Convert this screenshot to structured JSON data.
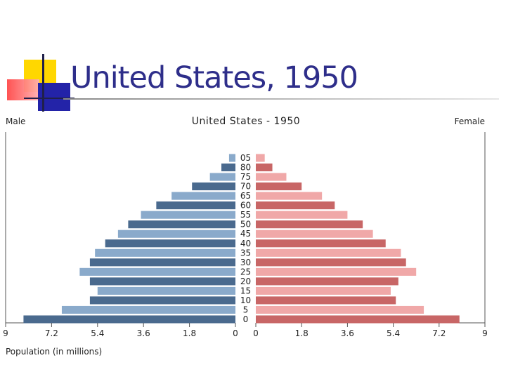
{
  "slide": {
    "title": "United States, 1950"
  },
  "chart_data": {
    "type": "bar",
    "title": "United States - 1950",
    "left_label": "Male",
    "right_label": "Female",
    "xlabel": "Population (in millions)",
    "xlim": [
      0,
      9
    ],
    "left_ticks": [
      "9",
      "7.2",
      "5.4",
      "3.6",
      "1.8",
      "0"
    ],
    "right_ticks": [
      "0",
      "1.8",
      "3.6",
      "5.4",
      "7.2",
      "9"
    ],
    "categories": [
      "0",
      "5",
      "10",
      "15",
      "20",
      "25",
      "30",
      "35",
      "40",
      "45",
      "50",
      "55",
      "60",
      "65",
      "70",
      "75",
      "80",
      "05"
    ],
    "series": [
      {
        "name": "Male",
        "values": [
          8.3,
          6.8,
          5.7,
          5.4,
          5.7,
          6.1,
          5.7,
          5.5,
          5.1,
          4.6,
          4.2,
          3.7,
          3.1,
          2.5,
          1.7,
          1.0,
          0.55,
          0.25
        ]
      },
      {
        "name": "Female",
        "values": [
          8.0,
          6.6,
          5.5,
          5.3,
          5.6,
          6.3,
          5.9,
          5.7,
          5.1,
          4.6,
          4.2,
          3.6,
          3.1,
          2.6,
          1.8,
          1.2,
          0.65,
          0.35
        ]
      }
    ],
    "colors": {
      "male_dark": "#4a6a8e",
      "male_light": "#8aaacb",
      "female_dark": "#c86666",
      "female_light": "#f0a8a8",
      "axis": "#555555"
    }
  }
}
